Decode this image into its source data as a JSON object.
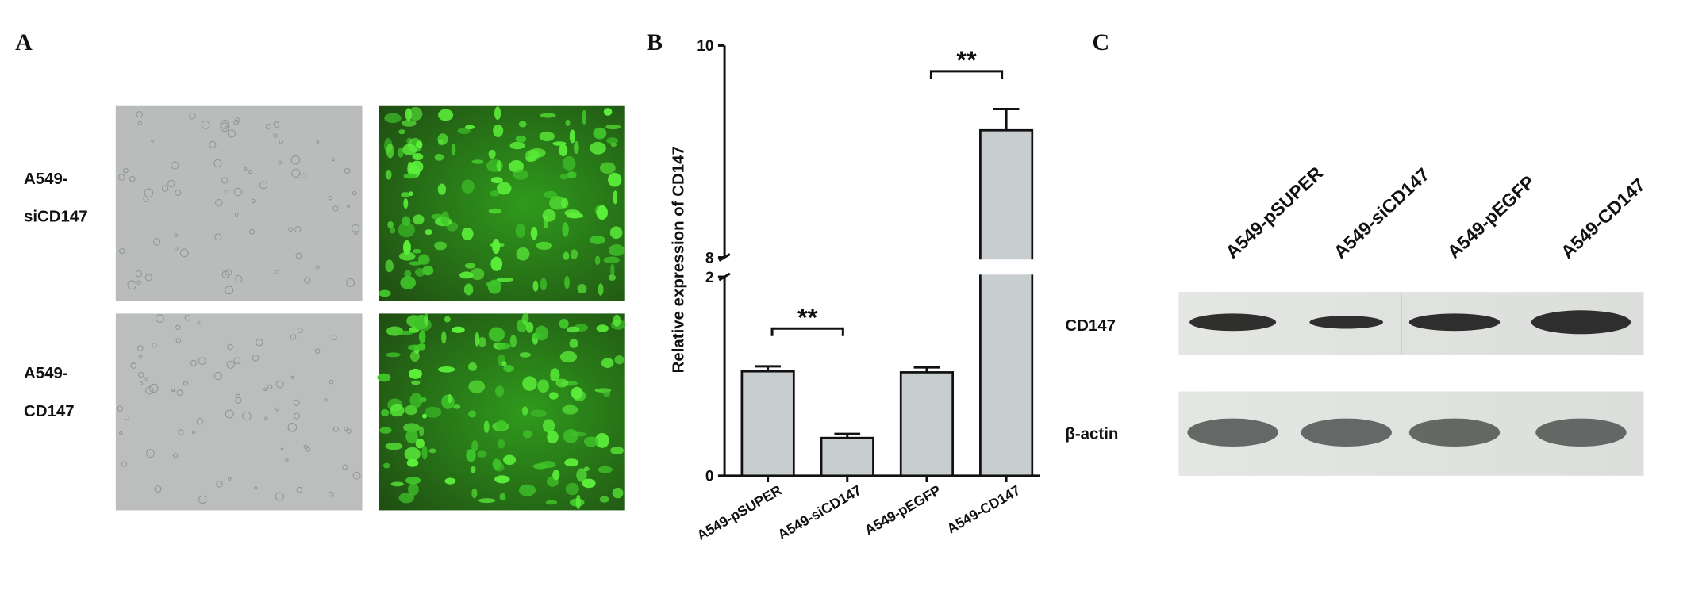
{
  "panel_a": {
    "label": "A",
    "row_labels": [
      [
        "A549-",
        "siCD147"
      ],
      [
        "A549-",
        "CD147"
      ]
    ]
  },
  "chart_data": {
    "type": "bar",
    "panel_label": "B",
    "y_label": "Relative expression of CD147",
    "categories": [
      "A549-pSUPER",
      "A549-siCD147",
      "A549-pEGFP",
      "A549-CD147"
    ],
    "values": [
      1.05,
      0.38,
      1.04,
      9.2
    ],
    "errors": [
      0.05,
      0.04,
      0.05,
      0.2
    ],
    "color": "#c8cdd0",
    "ylim": [
      0,
      10
    ],
    "y_break": [
      2,
      8
    ],
    "yticks": [
      0,
      2,
      8,
      10
    ],
    "annotations": [
      "**",
      "**"
    ]
  },
  "panel_c": {
    "label": "C",
    "lanes": [
      "A549-pSUPER",
      "A549-siCD147",
      "A549-pEGFP",
      "A549-CD147"
    ],
    "rows": [
      "CD147",
      "β-actin"
    ]
  }
}
